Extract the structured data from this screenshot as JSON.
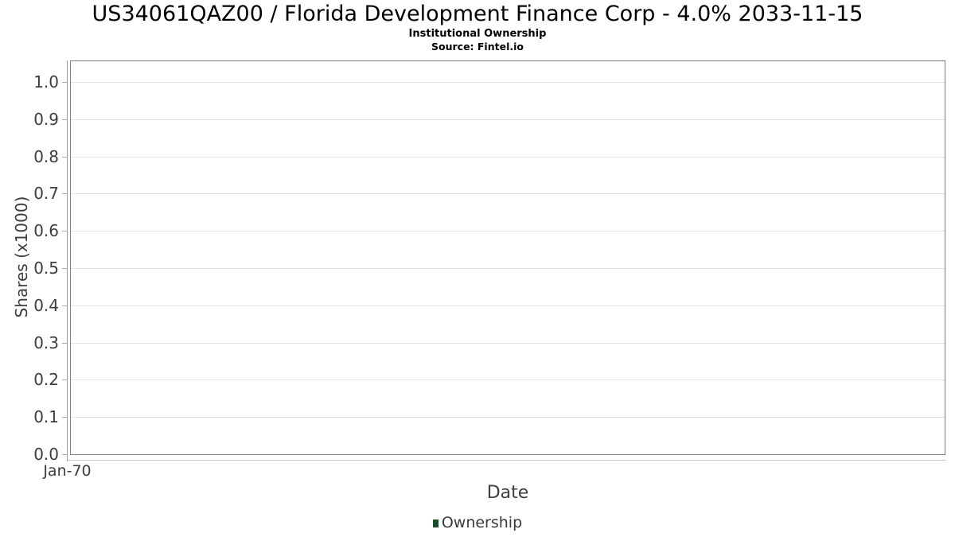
{
  "chart_data": {
    "type": "line",
    "title": "US34061QAZ00 / Florida Development Finance Corp - 4.0% 2033-11-15",
    "subtitle": "Institutional Ownership",
    "source": "Source: Fintel.io",
    "xlabel": "Date",
    "ylabel": "Shares (x1000)",
    "x_tick_labels": [
      "Jan-70"
    ],
    "y_tick_labels": [
      "1.0",
      "0.9",
      "0.8",
      "0.7",
      "0.6",
      "0.5",
      "0.4",
      "0.3",
      "0.2",
      "0.1",
      "0.0"
    ],
    "ylim": [
      0.0,
      1.05
    ],
    "grid": "horizontal",
    "legend": {
      "position": "bottom",
      "entries": [
        {
          "label": "Ownership",
          "color": "#1e4d2b"
        }
      ]
    },
    "series": [
      {
        "name": "Ownership",
        "x": [],
        "y": []
      }
    ]
  },
  "colors": {
    "background": "#ffffff",
    "title_text": "#000000",
    "axis_text": "#3d3d3d",
    "plot_border": "#7f7f7f",
    "axis_line": "#9a9a9a",
    "gridline": "#e1e1e1",
    "x_axis_line": "#cccccc",
    "legend_marker": "#1e4d2b"
  }
}
